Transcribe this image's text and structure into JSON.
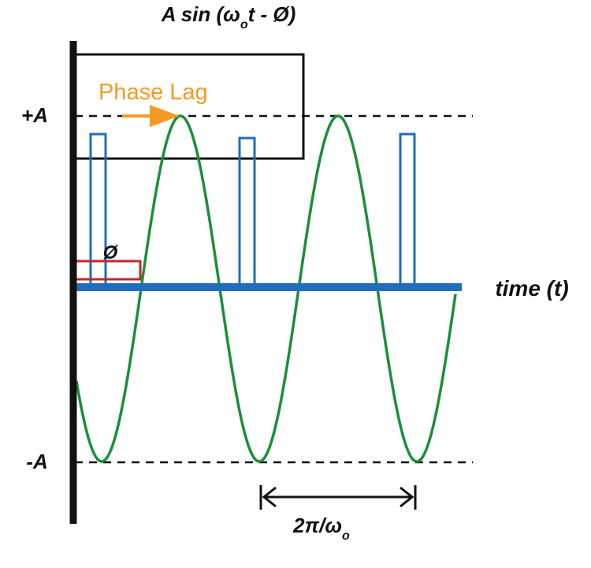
{
  "title": {
    "prefix": "A sin (ω",
    "sub": "o",
    "suffix": "t - Ø)"
  },
  "labels": {
    "plus_a": "+A",
    "minus_a": "-A",
    "time_axis": "time (t)",
    "phase_lag": "Phase Lag",
    "phi": "Ø",
    "period_main": "2π/ω",
    "period_sub": "o"
  },
  "colors": {
    "sine": "#1a8f3c",
    "pulse": "#1f6cc0",
    "axis": "#1f6cc0",
    "phase_text": "#f59a23",
    "phi_box": "#c0282c",
    "frame": "#111111"
  }
}
